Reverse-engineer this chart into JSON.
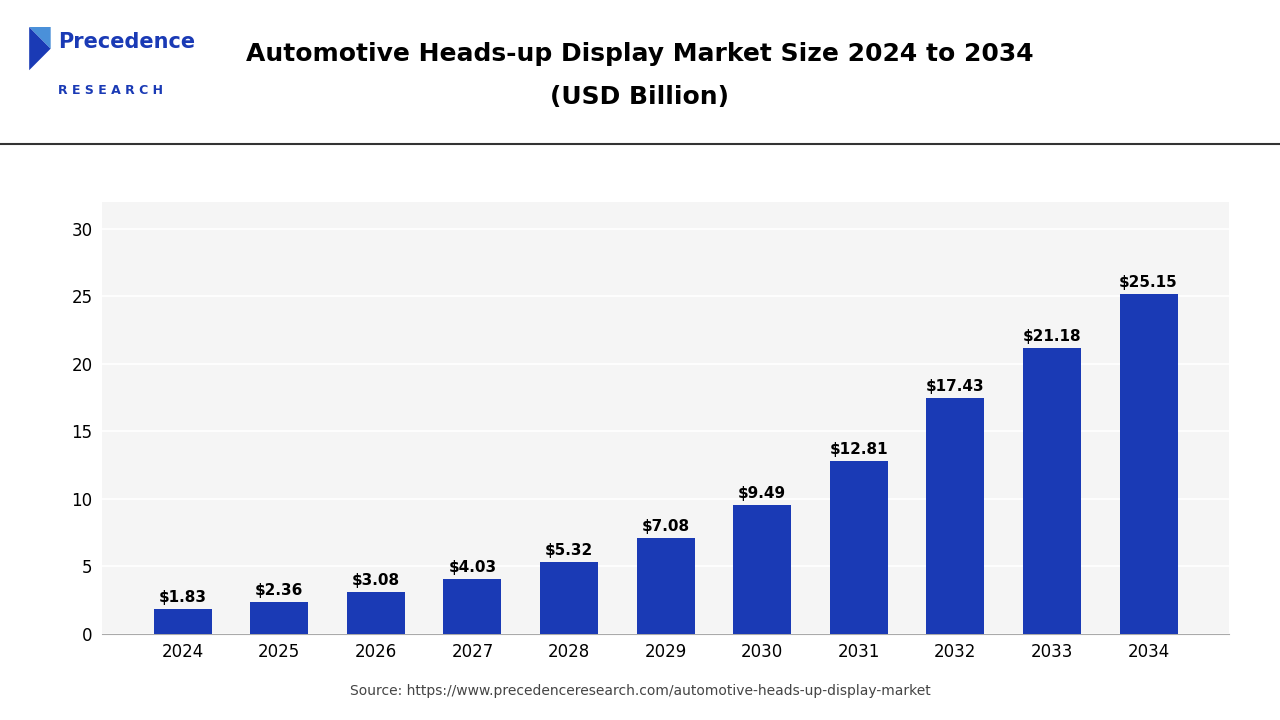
{
  "title_line1": "Automotive Heads-up Display Market Size 2024 to 2034",
  "title_line2": "(USD Billion)",
  "years": [
    2024,
    2025,
    2026,
    2027,
    2028,
    2029,
    2030,
    2031,
    2032,
    2033,
    2034
  ],
  "values": [
    1.83,
    2.36,
    3.08,
    4.03,
    5.32,
    7.08,
    9.49,
    12.81,
    17.43,
    21.18,
    25.15
  ],
  "bar_color": "#1a3ab5",
  "ylim": [
    0,
    32
  ],
  "yticks": [
    0,
    5,
    10,
    15,
    20,
    25,
    30
  ],
  "source_text": "Source: https://www.precedenceresearch.com/automotive-heads-up-display-market",
  "background_color": "#ffffff",
  "plot_bg_color": "#f5f5f5",
  "title_fontsize": 18,
  "label_fontsize": 11,
  "tick_fontsize": 12,
  "source_fontsize": 10,
  "bar_width": 0.6,
  "logo_line1": "Precedence",
  "logo_line2": "R E S E A R C H",
  "logo_color": "#1a3ab5",
  "separator_color": "#333333"
}
